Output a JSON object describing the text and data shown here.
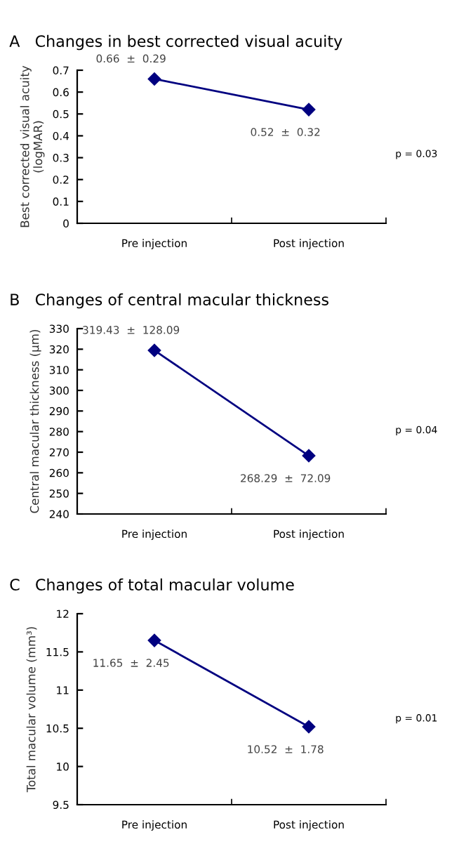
{
  "chart_data": [
    {
      "type": "line",
      "title": "A   Changes in best corrected visual acuity",
      "ylabel": "Best corrected visual acuity\n(logMAR)",
      "categories": [
        "Pre injection",
        "Post injection"
      ],
      "series": [
        {
          "color": "#000080",
          "values": [
            0.66,
            0.52
          ],
          "value_labels": [
            "0.66  ±  0.29",
            "0.52  ±  0.32"
          ]
        }
      ],
      "ylim": [
        0,
        0.7
      ],
      "yticks": [
        {
          "value": 0,
          "label": "0"
        },
        0.1,
        0.2,
        0.3,
        0.4,
        0.5,
        0.6,
        0.7
      ],
      "marker": "diamond",
      "grid": false,
      "annotations": [
        "p = 0.03"
      ]
    },
    {
      "type": "line",
      "title": "B   Changes of central macular thickness",
      "ylabel": "Central macular thickness (μm)",
      "categories": [
        "Pre injection",
        "Post injection"
      ],
      "series": [
        {
          "color": "#000080",
          "values": [
            319.43,
            268.29
          ],
          "value_labels": [
            "319.43  ±  128.09",
            "268.29  ±  72.09"
          ]
        }
      ],
      "ylim": [
        240,
        330
      ],
      "yticks": [
        240,
        250,
        260,
        270,
        280,
        290,
        300,
        310,
        320,
        330
      ],
      "marker": "diamond",
      "grid": false,
      "annotations": [
        "p = 0.04"
      ]
    },
    {
      "type": "line",
      "title": "C   Changes of total macular volume",
      "ylabel": "Total macular volume (mm³)",
      "categories": [
        "Pre injection",
        "Post injection"
      ],
      "series": [
        {
          "color": "#000080",
          "values": [
            11.65,
            10.52
          ],
          "value_labels": [
            "11.65  ±  2.45",
            "10.52  ±  1.78"
          ]
        }
      ],
      "ylim": [
        9.5,
        12
      ],
      "yticks": [
        9.5,
        10,
        10.5,
        11,
        11.5,
        12
      ],
      "marker": "diamond",
      "grid": false,
      "annotations": [
        "p = 0.01"
      ]
    }
  ]
}
